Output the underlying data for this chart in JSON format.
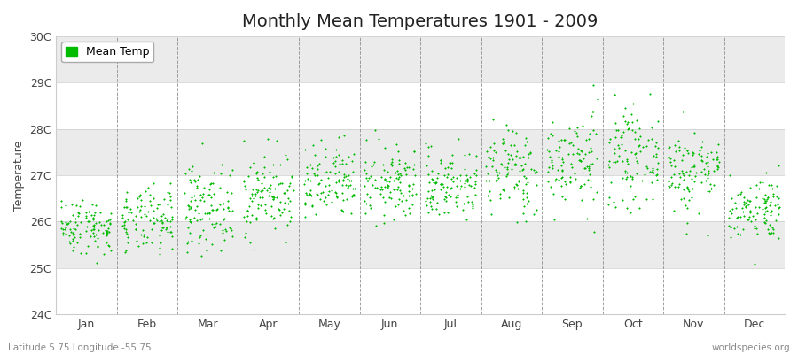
{
  "title": "Monthly Mean Temperatures 1901 - 2009",
  "ylabel": "Temperature",
  "subtitle_left": "Latitude 5.75 Longitude -55.75",
  "subtitle_right": "worldspecies.org",
  "dot_color": "#00BB00",
  "background_color": "#FFFFFF",
  "plot_bg_color": "#FFFFFF",
  "band_color_even": "#EBEBEB",
  "band_color_odd": "#FFFFFF",
  "legend_label": "Mean Temp",
  "ylim": [
    24,
    30
  ],
  "ytick_labels": [
    "24C",
    "25C",
    "26C",
    "27C",
    "28C",
    "29C",
    "30C"
  ],
  "months": [
    "Jan",
    "Feb",
    "Mar",
    "Apr",
    "May",
    "Jun",
    "Jul",
    "Aug",
    "Sep",
    "Oct",
    "Nov",
    "Dec"
  ],
  "month_centers": [
    0.5,
    1.5,
    2.5,
    3.5,
    4.5,
    5.5,
    6.5,
    7.5,
    8.5,
    9.5,
    10.5,
    11.5
  ],
  "seed": 42,
  "n_years": 109,
  "monthly_means": [
    25.9,
    26.0,
    26.3,
    26.6,
    26.8,
    26.8,
    26.8,
    27.1,
    27.3,
    27.4,
    27.1,
    26.3
  ],
  "monthly_stds": [
    0.3,
    0.35,
    0.45,
    0.45,
    0.42,
    0.4,
    0.38,
    0.48,
    0.52,
    0.5,
    0.46,
    0.35
  ],
  "dot_size": 3,
  "dot_marker": "+",
  "title_fontsize": 14,
  "label_fontsize": 9,
  "tick_fontsize": 9,
  "legend_fontsize": 9
}
